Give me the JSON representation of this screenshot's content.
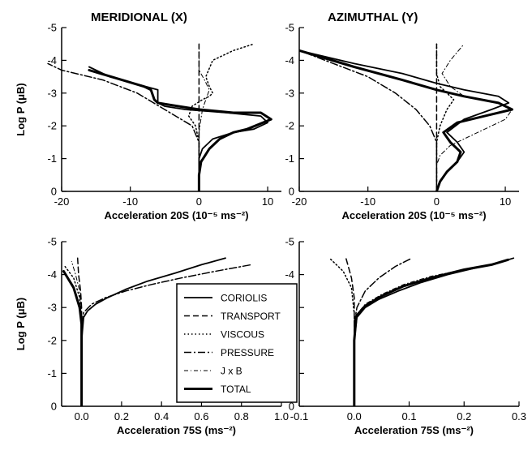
{
  "styles": {
    "CORIOLIS": {
      "dash": "",
      "width": 1.8
    },
    "TRANSPORT": {
      "dash": "7,4",
      "width": 1.5
    },
    "VISCOUS": {
      "dash": "1.5,3",
      "width": 1.5
    },
    "PRESSURE": {
      "dash": "9,3,2,3",
      "width": 1.5
    },
    "J x B": {
      "dash": "5,3,1,3",
      "width": 1.0
    },
    "TOTAL": {
      "dash": "",
      "width": 3.0
    }
  },
  "legend_entries": [
    "CORIOLIS",
    "TRANSPORT",
    "VISCOUS",
    "PRESSURE",
    "J x B",
    "TOTAL"
  ],
  "chart_data": [
    {
      "type": "line",
      "title": "MERIDIONAL (X)",
      "xlabel": "Acceleration 20S (10⁻⁵ ms⁻²)",
      "ylabel": "Log P (μB)",
      "xlim": [
        -20,
        12
      ],
      "ylim": [
        0,
        -5
      ],
      "xticks": [
        -20,
        -10,
        0,
        10
      ],
      "yticks": [
        -5,
        -4,
        -3,
        -2,
        -1,
        0
      ],
      "series": [
        {
          "name": "CORIOLIS",
          "x": [
            0,
            0,
            0,
            0.5,
            2,
            5,
            8,
            10,
            9,
            4,
            -2,
            -5,
            -6,
            -6,
            -13,
            -16
          ],
          "y": [
            0,
            -0.5,
            -1,
            -1.3,
            -1.6,
            -1.8,
            -1.9,
            -2.1,
            -2.3,
            -2.4,
            -2.5,
            -2.6,
            -2.7,
            -3.1,
            -3.5,
            -3.8
          ]
        },
        {
          "name": "TRANSPORT",
          "x": [
            0,
            0,
            0,
            0,
            0,
            0,
            0,
            0,
            0,
            0,
            0,
            0
          ],
          "y": [
            0,
            -0.5,
            -1,
            -1.5,
            -2,
            -2.5,
            -3,
            -3.5,
            -4,
            -4.2,
            -4.4,
            -4.5
          ]
        },
        {
          "name": "VISCOUS",
          "x": [
            0,
            0,
            0,
            -0.5,
            -1.5,
            -1,
            0.5,
            1.5,
            2,
            1.5,
            1,
            2,
            5,
            8
          ],
          "y": [
            0,
            -1,
            -1.5,
            -2,
            -2.3,
            -2.6,
            -2.8,
            -2.9,
            -3.0,
            -3.2,
            -3.5,
            -4.0,
            -4.3,
            -4.5
          ]
        },
        {
          "name": "PRESSURE",
          "x": [
            0,
            0,
            0,
            -1,
            -5,
            -9,
            -14,
            -20,
            -22
          ],
          "y": [
            0,
            -1,
            -1.5,
            -2.0,
            -2.5,
            -3.0,
            -3.4,
            -3.7,
            -3.9
          ]
        },
        {
          "name": "J x B",
          "x": [
            0,
            0,
            0,
            0.2,
            0.5,
            1,
            1.5,
            0.8,
            0,
            0,
            0
          ],
          "y": [
            0,
            -1,
            -1.8,
            -2.1,
            -2.5,
            -2.8,
            -3.1,
            -3.4,
            -3.7,
            -4.0,
            -4.5
          ]
        },
        {
          "name": "TOTAL",
          "x": [
            0,
            0,
            0.3,
            1.5,
            3,
            5,
            7,
            10.5,
            9,
            5,
            0,
            -3,
            -6,
            -6.5,
            -7,
            -8,
            -16
          ],
          "y": [
            0,
            -0.5,
            -0.9,
            -1.3,
            -1.6,
            -1.8,
            -1.9,
            -2.2,
            -2.4,
            -2.4,
            -2.5,
            -2.6,
            -2.7,
            -2.8,
            -3.1,
            -3.2,
            -3.7
          ]
        }
      ]
    },
    {
      "type": "line",
      "title": "AZIMUTHAL (Y)",
      "xlabel": "Acceleration 20S (10⁻⁵ ms⁻²)",
      "ylabel": "",
      "xlim": [
        -20,
        12
      ],
      "ylim": [
        0,
        -5
      ],
      "xticks": [
        -20,
        -10,
        0,
        10
      ],
      "yticks": [
        -5,
        -4,
        -3,
        -2,
        -1,
        0
      ],
      "series": [
        {
          "name": "CORIOLIS",
          "x": [
            0,
            0.5,
            1.5,
            3,
            4,
            3,
            1.5,
            4,
            8,
            10.5,
            9,
            4,
            0,
            -5,
            -12,
            -20
          ],
          "y": [
            0,
            -0.3,
            -0.6,
            -0.9,
            -1.2,
            -1.5,
            -1.8,
            -2.2,
            -2.5,
            -2.7,
            -2.9,
            -3.1,
            -3.3,
            -3.6,
            -3.9,
            -4.3
          ]
        },
        {
          "name": "TRANSPORT",
          "x": [
            0,
            0,
            0,
            0,
            0,
            0,
            0,
            0,
            0,
            0,
            0
          ],
          "y": [
            0,
            -0.5,
            -1,
            -1.5,
            -2,
            -2.5,
            -3,
            -3.5,
            -4,
            -4.3,
            -4.5
          ]
        },
        {
          "name": "VISCOUS",
          "x": [
            0,
            0,
            0,
            0.5,
            1.5,
            2.5,
            1.5,
            0.5,
            0,
            0,
            0
          ],
          "y": [
            0,
            -1,
            -1.5,
            -2.0,
            -2.5,
            -2.8,
            -3.0,
            -3.2,
            -3.6,
            -4.0,
            -4.5
          ]
        },
        {
          "name": "PRESSURE",
          "x": [
            0,
            0,
            0,
            -1,
            -3,
            -6,
            -10,
            -15,
            -20
          ],
          "y": [
            0,
            -1,
            -1.5,
            -2.0,
            -2.5,
            -3.0,
            -3.5,
            -3.9,
            -4.3
          ]
        },
        {
          "name": "J x B",
          "x": [
            0,
            0,
            0.5,
            2,
            5,
            8,
            10,
            11,
            9,
            4,
            2,
            0.8,
            2,
            4
          ],
          "y": [
            0,
            -0.8,
            -1.1,
            -1.4,
            -1.7,
            -2.0,
            -2.2,
            -2.5,
            -2.7,
            -2.9,
            -3.2,
            -3.6,
            -4.0,
            -4.5
          ]
        },
        {
          "name": "TOTAL",
          "x": [
            0,
            0.5,
            1.5,
            3,
            3.5,
            2,
            1,
            3,
            7,
            11,
            9,
            4,
            0,
            -5,
            -12,
            -20
          ],
          "y": [
            0,
            -0.3,
            -0.6,
            -0.9,
            -1.2,
            -1.5,
            -1.8,
            -2.1,
            -2.3,
            -2.5,
            -2.7,
            -2.9,
            -3.1,
            -3.4,
            -3.8,
            -4.3
          ]
        }
      ]
    },
    {
      "type": "line",
      "title": "",
      "xlabel": "Acceleration 75S (ms⁻²)",
      "ylabel": "Log P (μB)",
      "xlim": [
        -0.1,
        1.0
      ],
      "ylim": [
        0,
        -5
      ],
      "xticks": [
        0.0,
        0.2,
        0.4,
        0.6,
        0.8,
        1.0
      ],
      "yticks": [
        -5,
        -4,
        -3,
        -2,
        -1,
        0
      ],
      "series": [
        {
          "name": "CORIOLIS",
          "x": [
            0,
            0,
            0,
            0.01,
            0.03,
            0.07,
            0.13,
            0.22,
            0.33,
            0.47,
            0.6,
            0.72
          ],
          "y": [
            0,
            -1,
            -2,
            -2.7,
            -2.9,
            -3.1,
            -3.3,
            -3.55,
            -3.8,
            -4.05,
            -4.3,
            -4.5
          ]
        },
        {
          "name": "TRANSPORT",
          "x": [
            0,
            0,
            0,
            -0.005,
            -0.015,
            -0.02
          ],
          "y": [
            0,
            -2,
            -3,
            -3.5,
            -4.0,
            -4.5
          ]
        },
        {
          "name": "VISCOUS",
          "x": [
            0,
            0,
            -0.01,
            -0.04,
            -0.09
          ],
          "y": [
            0,
            -2.5,
            -3.3,
            -3.9,
            -4.3
          ]
        },
        {
          "name": "PRESSURE",
          "x": [
            0,
            0,
            0.01,
            0.05,
            0.12,
            0.22,
            0.35,
            0.5,
            0.67,
            0.85
          ],
          "y": [
            0,
            -2.5,
            -2.85,
            -3.1,
            -3.3,
            -3.5,
            -3.7,
            -3.9,
            -4.1,
            -4.3
          ]
        },
        {
          "name": "J x B",
          "x": [
            0,
            0,
            -0.01,
            -0.03,
            -0.05
          ],
          "y": [
            0,
            -2.8,
            -3.5,
            -4.0,
            -4.4
          ]
        },
        {
          "name": "TOTAL",
          "x": [
            0,
            0,
            0,
            -0.01,
            -0.04,
            -0.09
          ],
          "y": [
            0,
            -1.5,
            -2.5,
            -3.0,
            -3.6,
            -4.1
          ]
        }
      ]
    },
    {
      "type": "line",
      "title": "",
      "xlabel": "Acceleration 75S (ms⁻²)",
      "ylabel": "",
      "xlim": [
        -0.1,
        0.3
      ],
      "ylim": [
        0,
        -5
      ],
      "xticks": [
        -0.1,
        0.0,
        0.1,
        0.2,
        0.3
      ],
      "yticks": [
        -5,
        -4,
        -3,
        -2,
        -1,
        0
      ],
      "series": [
        {
          "name": "CORIOLIS",
          "x": [
            0,
            0,
            0,
            0.005,
            0.02,
            0.045,
            0.08,
            0.12,
            0.17,
            0.22,
            0.26,
            0.29
          ],
          "y": [
            0,
            -1,
            -2,
            -2.7,
            -3.0,
            -3.25,
            -3.5,
            -3.75,
            -4.0,
            -4.2,
            -4.35,
            -4.5
          ]
        },
        {
          "name": "TRANSPORT",
          "x": [
            0,
            0,
            0,
            -0.005,
            -0.015
          ],
          "y": [
            0,
            -2.5,
            -3.3,
            -3.9,
            -4.5
          ]
        },
        {
          "name": "VISCOUS",
          "x": [
            0,
            0,
            -0.005,
            -0.02,
            -0.045
          ],
          "y": [
            0,
            -2.8,
            -3.6,
            -4.1,
            -4.5
          ]
        },
        {
          "name": "PRESSURE",
          "x": [
            0,
            0,
            0.005,
            0.02,
            0.045,
            0.075,
            0.105
          ],
          "y": [
            0,
            -2.5,
            -3.0,
            -3.5,
            -3.9,
            -4.25,
            -4.5
          ]
        },
        {
          "name": "J x B",
          "x": [
            0,
            0,
            0.005,
            0.02,
            0.05,
            0.09,
            0.14,
            0.2,
            0.25,
            0.28
          ],
          "y": [
            0,
            -2,
            -2.8,
            -3.1,
            -3.4,
            -3.7,
            -3.95,
            -4.15,
            -4.3,
            -4.45
          ]
        },
        {
          "name": "TOTAL",
          "x": [
            0,
            0,
            0.004,
            0.02,
            0.05,
            0.09,
            0.14,
            0.2,
            0.25,
            0.28
          ],
          "y": [
            0,
            -2,
            -2.75,
            -3.05,
            -3.35,
            -3.65,
            -3.9,
            -4.15,
            -4.3,
            -4.45
          ]
        }
      ]
    }
  ]
}
